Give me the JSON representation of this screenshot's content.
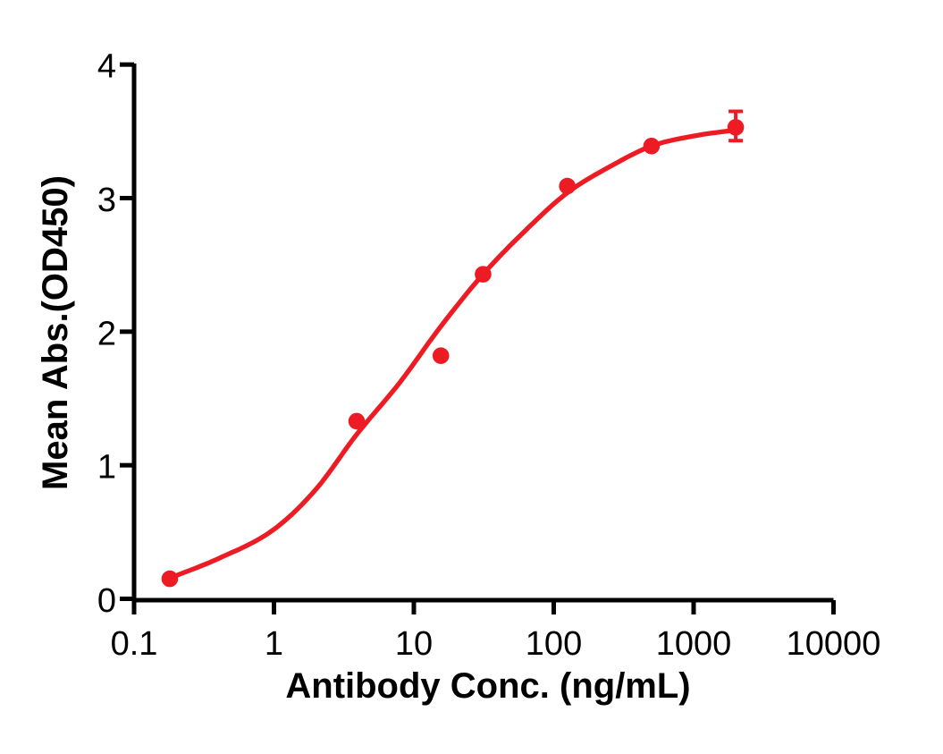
{
  "figure": {
    "background_color": "#ffffff",
    "axis_color": "#000000",
    "series_color": "#ed1c24"
  },
  "chart_data": {
    "type": "scatter",
    "subtype": "dose-response curve with 4PL fit line",
    "title": "",
    "xlabel": "Antibody Conc. (ng/mL)",
    "ylabel": "Mean Abs.(OD450)",
    "x_scale": "log10",
    "xlim": [
      0.1,
      10000
    ],
    "ylim": [
      0,
      4
    ],
    "grid": "off",
    "legend": "none",
    "x_ticks": [
      {
        "value": 0.1,
        "label": "0.1"
      },
      {
        "value": 1,
        "label": "1"
      },
      {
        "value": 10,
        "label": "10"
      },
      {
        "value": 100,
        "label": "100"
      },
      {
        "value": 1000,
        "label": "1000"
      },
      {
        "value": 10000,
        "label": "10000"
      }
    ],
    "y_ticks": [
      {
        "value": 0,
        "label": "0"
      },
      {
        "value": 1,
        "label": "1"
      },
      {
        "value": 2,
        "label": "2"
      },
      {
        "value": 3,
        "label": "3"
      },
      {
        "value": 4,
        "label": "4"
      }
    ],
    "series": [
      {
        "marker": "filled-circle",
        "color": "#ed1c24",
        "points": {
          "x": [
            0.18,
            3.9,
            15.6,
            31.25,
            125,
            500,
            2000
          ],
          "y": [
            0.15,
            1.33,
            1.82,
            2.43,
            3.09,
            3.39,
            3.53
          ]
        },
        "error_bars": [
          {
            "point_index": 6,
            "plus": 0.12,
            "minus": 0.1
          }
        ],
        "fit_curve": {
          "log10x": [
            -0.745,
            -0.4,
            0.0,
            0.3,
            0.591,
            0.9,
            1.193,
            1.495,
            1.8,
            2.097,
            2.4,
            2.699,
            3.0,
            3.301
          ],
          "y": [
            0.155,
            0.3,
            0.52,
            0.82,
            1.23,
            1.62,
            2.04,
            2.43,
            2.76,
            3.04,
            3.235,
            3.39,
            3.465,
            3.51
          ]
        }
      }
    ]
  }
}
